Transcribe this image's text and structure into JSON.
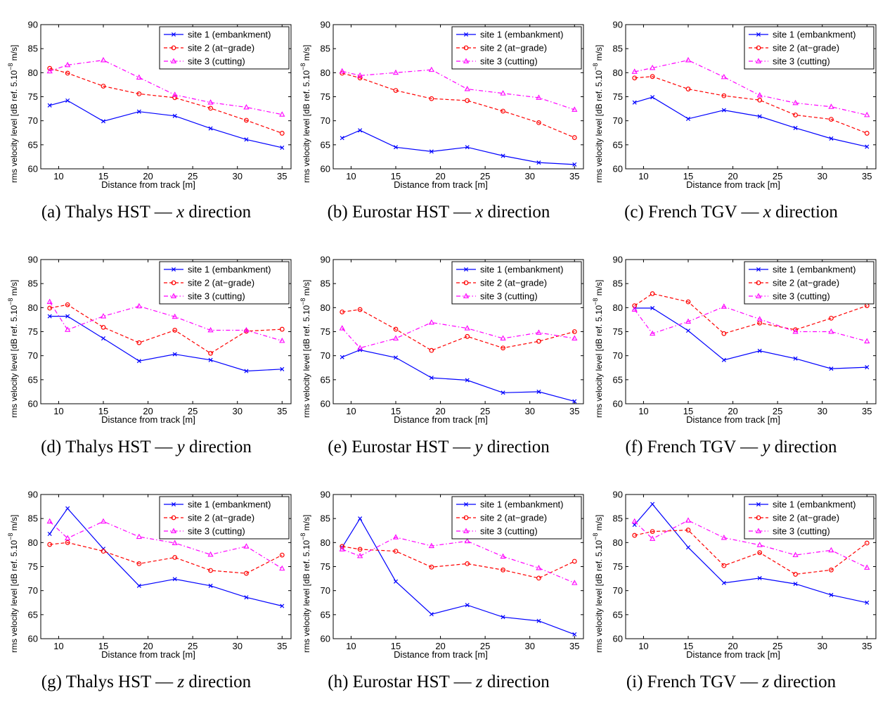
{
  "chart_data": [
    {
      "id": "a",
      "type": "line",
      "caption": {
        "label": "(a)",
        "train": "Thalys HST",
        "dash": "—",
        "direction_var": "x",
        "direction_word": "direction"
      },
      "xlabel": "Distance from track  [m]",
      "ylabel": {
        "prefix": "rms velocity level  [dB ref. 5.10",
        "exponent": "−8",
        "suffix": " m/s]"
      },
      "xlim": [
        8,
        36
      ],
      "ylim": [
        60,
        90
      ],
      "xticks": [
        10,
        15,
        20,
        25,
        30,
        35
      ],
      "yticks": [
        60,
        65,
        70,
        75,
        80,
        85,
        90
      ],
      "legend_position": "top-right",
      "x": [
        9,
        11,
        15,
        19,
        23,
        27,
        31,
        35
      ],
      "series": [
        {
          "name": "site 1 (embankment)",
          "color": "#0000ff",
          "marker": "x",
          "style": "solid",
          "values": [
            73.2,
            74.2,
            69.9,
            71.9,
            71.0,
            68.4,
            66.1,
            64.4
          ]
        },
        {
          "name": "site 2 (at−grade)",
          "color": "#ff0000",
          "marker": "o",
          "style": "dashed",
          "values": [
            80.9,
            79.9,
            77.2,
            75.6,
            74.8,
            72.6,
            70.1,
            67.4
          ]
        },
        {
          "name": "site 3 (cutting)",
          "color": "#ff00ff",
          "marker": "^",
          "style": "dashdot",
          "values": [
            80.3,
            81.6,
            82.6,
            79.0,
            75.4,
            73.8,
            72.8,
            71.3
          ]
        }
      ]
    },
    {
      "id": "b",
      "type": "line",
      "caption": {
        "label": "(b)",
        "train": "Eurostar HST",
        "dash": "—",
        "direction_var": "x",
        "direction_word": "direction"
      },
      "xlabel": "Distance from track  [m]",
      "ylabel": {
        "prefix": "rms velocity level  [dB ref. 5.10",
        "exponent": "−8",
        "suffix": " m/s]"
      },
      "xlim": [
        8,
        36
      ],
      "ylim": [
        60,
        90
      ],
      "xticks": [
        10,
        15,
        20,
        25,
        30,
        35
      ],
      "yticks": [
        60,
        65,
        70,
        75,
        80,
        85,
        90
      ],
      "legend_position": "top-right",
      "x": [
        9,
        11,
        15,
        19,
        23,
        27,
        31,
        35
      ],
      "series": [
        {
          "name": "site 1 (embankment)",
          "color": "#0000ff",
          "marker": "x",
          "style": "solid",
          "values": [
            66.4,
            68.0,
            64.5,
            63.6,
            64.5,
            62.7,
            61.3,
            60.9
          ]
        },
        {
          "name": "site 2 (at−grade)",
          "color": "#ff0000",
          "marker": "o",
          "style": "dashed",
          "values": [
            79.9,
            78.9,
            76.3,
            74.6,
            74.2,
            72.0,
            69.6,
            66.5
          ]
        },
        {
          "name": "site 3 (cutting)",
          "color": "#ff00ff",
          "marker": "^",
          "style": "dashdot",
          "values": [
            80.3,
            79.4,
            80.0,
            80.6,
            76.6,
            75.7,
            74.8,
            72.3
          ]
        }
      ]
    },
    {
      "id": "c",
      "type": "line",
      "caption": {
        "label": "(c)",
        "train": "French TGV",
        "dash": "—",
        "direction_var": "x",
        "direction_word": "direction"
      },
      "xlabel": "Distance from track  [m]",
      "ylabel": {
        "prefix": "rms velocity level  [dB ref. 5.10",
        "exponent": "−8",
        "suffix": " m/s]"
      },
      "xlim": [
        8,
        36
      ],
      "ylim": [
        60,
        90
      ],
      "xticks": [
        10,
        15,
        20,
        25,
        30,
        35
      ],
      "yticks": [
        60,
        65,
        70,
        75,
        80,
        85,
        90
      ],
      "legend_position": "top-right",
      "x": [
        9,
        11,
        15,
        19,
        23,
        27,
        31,
        35
      ],
      "series": [
        {
          "name": "site 1 (embankment)",
          "color": "#0000ff",
          "marker": "x",
          "style": "solid",
          "values": [
            73.8,
            74.9,
            70.4,
            72.2,
            70.9,
            68.5,
            66.3,
            64.6
          ]
        },
        {
          "name": "site 2 (at−grade)",
          "color": "#ff0000",
          "marker": "o",
          "style": "dashed",
          "values": [
            78.9,
            79.2,
            76.6,
            75.2,
            74.3,
            71.2,
            70.3,
            67.4
          ]
        },
        {
          "name": "site 3 (cutting)",
          "color": "#ff00ff",
          "marker": "^",
          "style": "dashdot",
          "values": [
            80.2,
            81.0,
            82.6,
            79.1,
            75.3,
            73.7,
            72.9,
            71.2
          ]
        }
      ]
    },
    {
      "id": "d",
      "type": "line",
      "caption": {
        "label": "(d)",
        "train": "Thalys HST",
        "dash": "—",
        "direction_var": "y",
        "direction_word": "direction"
      },
      "xlabel": "Distance from track  [m]",
      "ylabel": {
        "prefix": "rms velocity level  [dB ref. 5.10",
        "exponent": "−8",
        "suffix": " m/s]"
      },
      "xlim": [
        8,
        36
      ],
      "ylim": [
        60,
        90
      ],
      "xticks": [
        10,
        15,
        20,
        25,
        30,
        35
      ],
      "yticks": [
        60,
        65,
        70,
        75,
        80,
        85,
        90
      ],
      "legend_position": "top-right",
      "x": [
        9,
        11,
        15,
        19,
        23,
        27,
        31,
        35
      ],
      "series": [
        {
          "name": "site 1 (embankment)",
          "color": "#0000ff",
          "marker": "x",
          "style": "solid",
          "values": [
            78.2,
            78.2,
            73.6,
            68.9,
            70.3,
            69.1,
            66.8,
            67.2
          ]
        },
        {
          "name": "site 2 (at−grade)",
          "color": "#ff0000",
          "marker": "o",
          "style": "dashed",
          "values": [
            79.9,
            80.6,
            75.9,
            72.7,
            75.3,
            70.5,
            75.1,
            75.5
          ]
        },
        {
          "name": "site 3 (cutting)",
          "color": "#ff00ff",
          "marker": "^",
          "style": "dashdot",
          "values": [
            81.2,
            75.4,
            78.2,
            80.3,
            78.1,
            75.3,
            75.3,
            73.1
          ]
        }
      ]
    },
    {
      "id": "e",
      "type": "line",
      "caption": {
        "label": "(e)",
        "train": "Eurostar HST",
        "dash": "—",
        "direction_var": "y",
        "direction_word": "direction"
      },
      "xlabel": "Distance from track  [m]",
      "ylabel": {
        "prefix": "rms velocity level  [dB ref. 5.10",
        "exponent": "−8",
        "suffix": " m/s]"
      },
      "xlim": [
        8,
        36
      ],
      "ylim": [
        60,
        90
      ],
      "xticks": [
        10,
        15,
        20,
        25,
        30,
        35
      ],
      "yticks": [
        60,
        65,
        70,
        75,
        80,
        85,
        90
      ],
      "legend_position": "top-right",
      "x": [
        9,
        11,
        15,
        19,
        23,
        27,
        31,
        35
      ],
      "series": [
        {
          "name": "site 1 (embankment)",
          "color": "#0000ff",
          "marker": "x",
          "style": "solid",
          "values": [
            69.7,
            71.2,
            69.6,
            65.4,
            64.9,
            62.3,
            62.5,
            60.5
          ]
        },
        {
          "name": "site 2 (at−grade)",
          "color": "#ff0000",
          "marker": "o",
          "style": "dashed",
          "values": [
            79.1,
            79.6,
            75.5,
            71.1,
            74.0,
            71.6,
            73.0,
            75.0
          ]
        },
        {
          "name": "site 3 (cutting)",
          "color": "#ff00ff",
          "marker": "^",
          "style": "dashdot",
          "values": [
            75.7,
            71.6,
            73.6,
            76.9,
            75.7,
            73.6,
            74.8,
            73.6
          ]
        }
      ]
    },
    {
      "id": "f",
      "type": "line",
      "caption": {
        "label": "(f)",
        "train": "French TGV",
        "dash": "—",
        "direction_var": "y",
        "direction_word": "direction"
      },
      "xlabel": "Distance from track  [m]",
      "ylabel": {
        "prefix": "rms velocity level  [dB ref. 5.10",
        "exponent": "−8",
        "suffix": " m/s]"
      },
      "xlim": [
        8,
        36
      ],
      "ylim": [
        60,
        90
      ],
      "xticks": [
        10,
        15,
        20,
        25,
        30,
        35
      ],
      "yticks": [
        60,
        65,
        70,
        75,
        80,
        85,
        90
      ],
      "legend_position": "top-right",
      "x": [
        9,
        11,
        15,
        19,
        23,
        27,
        31,
        35
      ],
      "series": [
        {
          "name": "site 1 (embankment)",
          "color": "#0000ff",
          "marker": "x",
          "style": "solid",
          "values": [
            79.9,
            79.9,
            75.2,
            69.1,
            71.0,
            69.4,
            67.3,
            67.6
          ]
        },
        {
          "name": "site 2 (at−grade)",
          "color": "#ff0000",
          "marker": "o",
          "style": "dashed",
          "values": [
            80.4,
            82.9,
            81.2,
            74.6,
            76.8,
            75.4,
            77.8,
            80.4
          ]
        },
        {
          "name": "site 3 (cutting)",
          "color": "#ff00ff",
          "marker": "^",
          "style": "dashdot",
          "values": [
            79.6,
            74.6,
            77.1,
            80.2,
            77.6,
            75.0,
            75.0,
            73.0
          ]
        }
      ]
    },
    {
      "id": "g",
      "type": "line",
      "caption": {
        "label": "(g)",
        "train": "Thalys HST",
        "dash": "—",
        "direction_var": "z",
        "direction_word": "direction"
      },
      "xlabel": "Distance from track  [m]",
      "ylabel": {
        "prefix": "rms velocity level  [dB ref. 5.10",
        "exponent": "−8",
        "suffix": " m/s]"
      },
      "xlim": [
        8,
        36
      ],
      "ylim": [
        60,
        90
      ],
      "xticks": [
        10,
        15,
        20,
        25,
        30,
        35
      ],
      "yticks": [
        60,
        65,
        70,
        75,
        80,
        85,
        90
      ],
      "legend_position": "top-right",
      "x": [
        9,
        11,
        15,
        19,
        23,
        27,
        31,
        35
      ],
      "series": [
        {
          "name": "site 1 (embankment)",
          "color": "#0000ff",
          "marker": "x",
          "style": "solid",
          "values": [
            81.8,
            87.1,
            78.7,
            71.0,
            72.4,
            71.0,
            68.6,
            66.8
          ]
        },
        {
          "name": "site 2 (at−grade)",
          "color": "#ff0000",
          "marker": "o",
          "style": "dashed",
          "values": [
            79.6,
            80.0,
            78.2,
            75.6,
            76.9,
            74.2,
            73.6,
            77.4
          ]
        },
        {
          "name": "site 3 (cutting)",
          "color": "#ff00ff",
          "marker": "^",
          "style": "dashdot",
          "values": [
            84.4,
            80.9,
            84.4,
            81.2,
            79.9,
            77.5,
            79.2,
            74.6
          ]
        }
      ]
    },
    {
      "id": "h",
      "type": "line",
      "caption": {
        "label": "(h)",
        "train": "Eurostar HST",
        "dash": "—",
        "direction_var": "z",
        "direction_word": "direction"
      },
      "xlabel": "Distance from track  [m]",
      "ylabel": {
        "prefix": "rms velocity level  [dB ref. 5.10",
        "exponent": "−8",
        "suffix": " m/s]"
      },
      "xlim": [
        8,
        36
      ],
      "ylim": [
        60,
        90
      ],
      "xticks": [
        10,
        15,
        20,
        25,
        30,
        35
      ],
      "yticks": [
        60,
        65,
        70,
        75,
        80,
        85,
        90
      ],
      "legend_position": "top-right",
      "x": [
        9,
        11,
        15,
        19,
        23,
        27,
        31,
        35
      ],
      "series": [
        {
          "name": "site 1 (embankment)",
          "color": "#0000ff",
          "marker": "x",
          "style": "solid",
          "values": [
            79.0,
            85.0,
            71.9,
            65.1,
            67.0,
            64.5,
            63.7,
            60.9
          ]
        },
        {
          "name": "site 2 (at−grade)",
          "color": "#ff0000",
          "marker": "o",
          "style": "dashed",
          "values": [
            79.2,
            78.6,
            78.2,
            74.9,
            75.6,
            74.3,
            72.6,
            76.1
          ]
        },
        {
          "name": "site 3 (cutting)",
          "color": "#ff00ff",
          "marker": "^",
          "style": "dashdot",
          "values": [
            78.6,
            77.2,
            81.1,
            79.3,
            80.3,
            77.1,
            74.7,
            71.6
          ]
        }
      ]
    },
    {
      "id": "i",
      "type": "line",
      "caption": {
        "label": "(i)",
        "train": "French TGV",
        "dash": "—",
        "direction_var": "z",
        "direction_word": "direction"
      },
      "xlabel": "Distance from track  [m]",
      "ylabel": {
        "prefix": "rms velocity level  [dB ref. 5.10",
        "exponent": "−8",
        "suffix": " m/s]"
      },
      "xlim": [
        8,
        36
      ],
      "ylim": [
        60,
        90
      ],
      "xticks": [
        10,
        15,
        20,
        25,
        30,
        35
      ],
      "yticks": [
        60,
        65,
        70,
        75,
        80,
        85,
        90
      ],
      "legend_position": "top-right",
      "x": [
        9,
        11,
        15,
        19,
        23,
        27,
        31,
        35
      ],
      "series": [
        {
          "name": "site 1 (embankment)",
          "color": "#0000ff",
          "marker": "x",
          "style": "solid",
          "values": [
            83.7,
            88.0,
            79.0,
            71.6,
            72.6,
            71.4,
            69.1,
            67.5
          ]
        },
        {
          "name": "site 2 (at−grade)",
          "color": "#ff0000",
          "marker": "o",
          "style": "dashed",
          "values": [
            81.5,
            82.3,
            82.6,
            75.2,
            77.9,
            73.4,
            74.3,
            79.9
          ]
        },
        {
          "name": "site 3 (cutting)",
          "color": "#ff00ff",
          "marker": "^",
          "style": "dashdot",
          "values": [
            84.4,
            80.8,
            84.6,
            81.0,
            79.5,
            77.4,
            78.4,
            74.8
          ]
        }
      ]
    }
  ]
}
